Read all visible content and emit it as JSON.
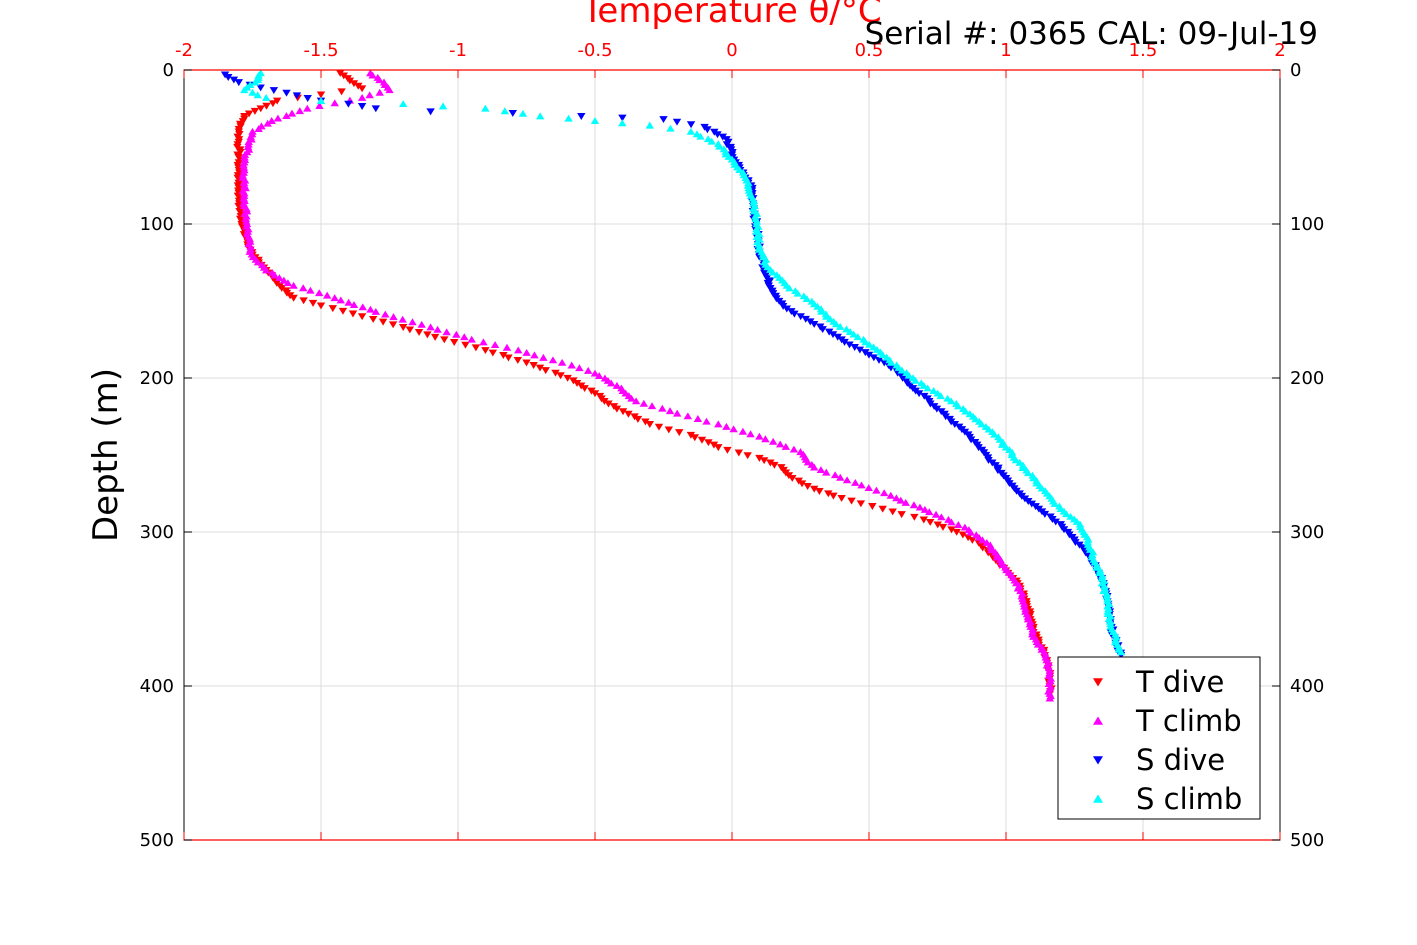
{
  "header": {
    "serial_text": "Serial #: 0365  CAL: 09-Jul-19"
  },
  "chart_data": {
    "type": "scatter",
    "title": "",
    "xlabel": "Temperature θ/°C",
    "ylabel": "Depth (m)",
    "xlim": [
      -2,
      2
    ],
    "ylim": [
      0,
      500
    ],
    "y_reversed": true,
    "x_ticks": [
      "-2",
      "-1.5",
      "-1",
      "-0.5",
      "0",
      "0.5",
      "1",
      "1.5",
      "2"
    ],
    "y_ticks": [
      "0",
      "100",
      "200",
      "300",
      "400",
      "500"
    ],
    "grid": true,
    "x_axis_position": "top",
    "legend_position": "bottom-right",
    "colors": {
      "t_dive": "#ff0000",
      "t_climb": "#ff00ff",
      "s_dive": "#0000ff",
      "s_climb": "#00ffff",
      "top_axis": "#ff0000"
    },
    "series": [
      {
        "name": "T dive",
        "marker": "triangle-down",
        "color": "#ff0000",
        "points": [
          [
            -1.43,
            2
          ],
          [
            -1.35,
            12
          ],
          [
            -1.5,
            16
          ],
          [
            -1.66,
            20
          ],
          [
            -1.72,
            25
          ],
          [
            -1.78,
            30
          ],
          [
            -1.8,
            40
          ],
          [
            -1.8,
            60
          ],
          [
            -1.8,
            80
          ],
          [
            -1.79,
            100
          ],
          [
            -1.77,
            110
          ],
          [
            -1.75,
            120
          ],
          [
            -1.7,
            130
          ],
          [
            -1.65,
            140
          ],
          [
            -1.6,
            148
          ],
          [
            -1.5,
            153
          ],
          [
            -1.35,
            160
          ],
          [
            -1.2,
            167
          ],
          [
            -1.05,
            175
          ],
          [
            -0.9,
            182
          ],
          [
            -0.75,
            190
          ],
          [
            -0.6,
            200
          ],
          [
            -0.5,
            210
          ],
          [
            -0.42,
            220
          ],
          [
            -0.3,
            230
          ],
          [
            -0.15,
            237
          ],
          [
            -0.05,
            245
          ],
          [
            0.1,
            252
          ],
          [
            0.18,
            258
          ],
          [
            0.22,
            265
          ],
          [
            0.3,
            272
          ],
          [
            0.4,
            278
          ],
          [
            0.55,
            285
          ],
          [
            0.7,
            292
          ],
          [
            0.82,
            300
          ],
          [
            0.9,
            307
          ],
          [
            0.95,
            315
          ],
          [
            1.0,
            325
          ],
          [
            1.05,
            335
          ],
          [
            1.08,
            350
          ],
          [
            1.1,
            365
          ],
          [
            1.13,
            375
          ],
          [
            1.15,
            385
          ],
          [
            1.16,
            395
          ],
          [
            1.16,
            405
          ]
        ]
      },
      {
        "name": "T climb",
        "marker": "triangle-up",
        "color": "#ff00ff",
        "points": [
          [
            -1.32,
            2
          ],
          [
            -1.27,
            8
          ],
          [
            -1.25,
            13
          ],
          [
            -1.35,
            18
          ],
          [
            -1.55,
            25
          ],
          [
            -1.68,
            33
          ],
          [
            -1.75,
            40
          ],
          [
            -1.78,
            60
          ],
          [
            -1.78,
            80
          ],
          [
            -1.77,
            100
          ],
          [
            -1.76,
            118
          ],
          [
            -1.7,
            130
          ],
          [
            -1.6,
            140
          ],
          [
            -1.45,
            148
          ],
          [
            -1.3,
            157
          ],
          [
            -1.1,
            167
          ],
          [
            -0.95,
            175
          ],
          [
            -0.78,
            182
          ],
          [
            -0.62,
            190
          ],
          [
            -0.5,
            197
          ],
          [
            -0.42,
            205
          ],
          [
            -0.35,
            215
          ],
          [
            -0.2,
            223
          ],
          [
            -0.05,
            230
          ],
          [
            0.1,
            238
          ],
          [
            0.25,
            248
          ],
          [
            0.3,
            258
          ],
          [
            0.45,
            268
          ],
          [
            0.6,
            278
          ],
          [
            0.72,
            287
          ],
          [
            0.85,
            297
          ],
          [
            0.93,
            307
          ],
          [
            0.98,
            318
          ],
          [
            1.02,
            328
          ],
          [
            1.06,
            340
          ],
          [
            1.08,
            355
          ],
          [
            1.1,
            368
          ],
          [
            1.14,
            378
          ],
          [
            1.16,
            390
          ],
          [
            1.16,
            402
          ],
          [
            1.16,
            408
          ]
        ]
      },
      {
        "name": "S dive",
        "marker": "triangle-down",
        "color": "#0000ff",
        "points": [
          [
            -1.85,
            3
          ],
          [
            -1.8,
            8
          ],
          [
            -1.5,
            20
          ],
          [
            -1.4,
            22
          ],
          [
            -1.3,
            25
          ],
          [
            -1.1,
            27
          ],
          [
            -0.8,
            28
          ],
          [
            -0.55,
            30
          ],
          [
            -0.4,
            31
          ],
          [
            -0.25,
            32
          ],
          [
            -0.1,
            37
          ],
          [
            -0.02,
            45
          ],
          [
            0.0,
            55
          ],
          [
            0.03,
            65
          ],
          [
            0.07,
            75
          ],
          [
            0.08,
            90
          ],
          [
            0.09,
            105
          ],
          [
            0.1,
            118
          ],
          [
            0.12,
            130
          ],
          [
            0.15,
            145
          ],
          [
            0.2,
            155
          ],
          [
            0.3,
            165
          ],
          [
            0.4,
            175
          ],
          [
            0.5,
            185
          ],
          [
            0.6,
            195
          ],
          [
            0.65,
            205
          ],
          [
            0.72,
            215
          ],
          [
            0.78,
            225
          ],
          [
            0.85,
            235
          ],
          [
            0.9,
            245
          ],
          [
            0.95,
            255
          ],
          [
            1.0,
            265
          ],
          [
            1.05,
            275
          ],
          [
            1.12,
            285
          ],
          [
            1.2,
            295
          ],
          [
            1.25,
            305
          ],
          [
            1.3,
            315
          ],
          [
            1.35,
            330
          ],
          [
            1.37,
            345
          ],
          [
            1.38,
            360
          ],
          [
            1.4,
            372
          ],
          [
            1.42,
            380
          ]
        ]
      },
      {
        "name": "S climb",
        "marker": "triangle-up",
        "color": "#00ffff",
        "points": [
          [
            -1.72,
            2
          ],
          [
            -1.74,
            8
          ],
          [
            -1.78,
            13
          ],
          [
            -1.7,
            18
          ],
          [
            -1.5,
            20
          ],
          [
            -1.2,
            22
          ],
          [
            -0.9,
            25
          ],
          [
            -0.7,
            30
          ],
          [
            -0.5,
            33
          ],
          [
            -0.3,
            36
          ],
          [
            -0.15,
            40
          ],
          [
            -0.05,
            48
          ],
          [
            0.0,
            58
          ],
          [
            0.05,
            70
          ],
          [
            0.08,
            85
          ],
          [
            0.09,
            100
          ],
          [
            0.1,
            115
          ],
          [
            0.13,
            128
          ],
          [
            0.2,
            140
          ],
          [
            0.3,
            152
          ],
          [
            0.38,
            165
          ],
          [
            0.48,
            175
          ],
          [
            0.55,
            185
          ],
          [
            0.62,
            195
          ],
          [
            0.7,
            205
          ],
          [
            0.8,
            215
          ],
          [
            0.88,
            225
          ],
          [
            0.95,
            235
          ],
          [
            1.0,
            245
          ],
          [
            1.05,
            255
          ],
          [
            1.1,
            265
          ],
          [
            1.15,
            275
          ],
          [
            1.2,
            285
          ],
          [
            1.27,
            295
          ],
          [
            1.3,
            305
          ],
          [
            1.32,
            318
          ],
          [
            1.35,
            330
          ],
          [
            1.37,
            345
          ],
          [
            1.38,
            358
          ],
          [
            1.4,
            370
          ],
          [
            1.42,
            378
          ]
        ]
      }
    ]
  }
}
